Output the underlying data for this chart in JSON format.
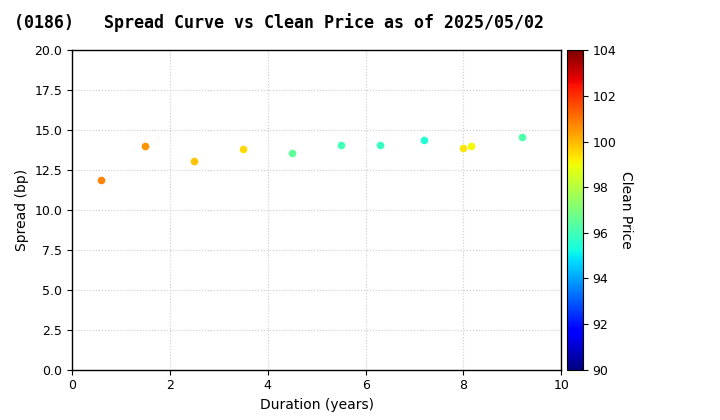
{
  "title": "(0186)   Spread Curve vs Clean Price as of 2025/05/02",
  "xlabel": "Duration (years)",
  "ylabel": "Spread (bp)",
  "colorbar_label": "Clean Price",
  "xlim": [
    0,
    10
  ],
  "ylim": [
    0.0,
    20.0
  ],
  "yticks": [
    0.0,
    2.5,
    5.0,
    7.5,
    10.0,
    12.5,
    15.0,
    17.5,
    20.0
  ],
  "xticks": [
    0,
    2,
    4,
    6,
    8,
    10
  ],
  "colorbar_min": 90,
  "colorbar_max": 104,
  "colorbar_ticks": [
    90,
    92,
    94,
    96,
    98,
    100,
    102,
    104
  ],
  "points": [
    {
      "duration": 0.6,
      "spread": 11.9,
      "price": 100.8
    },
    {
      "duration": 1.5,
      "spread": 14.0,
      "price": 100.5
    },
    {
      "duration": 2.5,
      "spread": 13.1,
      "price": 99.8
    },
    {
      "duration": 3.5,
      "spread": 13.8,
      "price": 99.5
    },
    {
      "duration": 4.5,
      "spread": 13.6,
      "price": 96.5
    },
    {
      "duration": 5.5,
      "spread": 14.1,
      "price": 96.0
    },
    {
      "duration": 6.3,
      "spread": 14.1,
      "price": 95.8
    },
    {
      "duration": 7.2,
      "spread": 14.4,
      "price": 95.5
    },
    {
      "duration": 8.0,
      "spread": 13.9,
      "price": 99.3
    },
    {
      "duration": 8.15,
      "spread": 14.0,
      "price": 99.0
    },
    {
      "duration": 9.2,
      "spread": 14.6,
      "price": 96.2
    }
  ],
  "background_color": "#ffffff",
  "grid_color": "#cccccc",
  "title_fontsize": 12,
  "axis_fontsize": 10,
  "tick_fontsize": 9,
  "point_size": 20
}
